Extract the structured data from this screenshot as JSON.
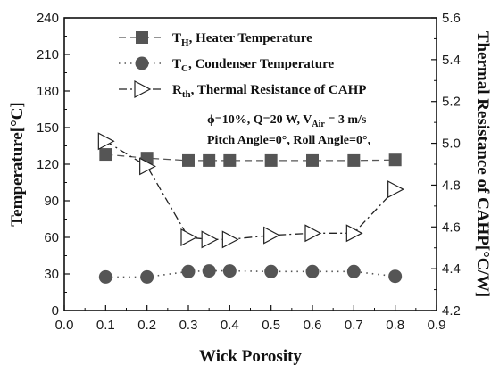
{
  "chart_data": {
    "type": "line",
    "xlabel": "Wick Porosity",
    "ylabel_left": "Temperature[°C]",
    "ylabel_right": "Thermal Resistance of CAHP[°C/W]",
    "xlim": [
      0.0,
      0.9
    ],
    "ylim_left": [
      0,
      240
    ],
    "ylim_right": [
      4.2,
      5.6
    ],
    "x_ticks": [
      "0.0",
      "0.1",
      "0.2",
      "0.3",
      "0.4",
      "0.5",
      "0.6",
      "0.7",
      "0.8",
      "0.9"
    ],
    "y_left_ticks": [
      "0",
      "30",
      "60",
      "90",
      "120",
      "150",
      "180",
      "210",
      "240"
    ],
    "y_right_ticks": [
      "4.2",
      "4.4",
      "4.6",
      "4.8",
      "5.0",
      "5.2",
      "5.4",
      "5.6"
    ],
    "x": [
      0.1,
      0.2,
      0.3,
      0.35,
      0.4,
      0.5,
      0.6,
      0.7,
      0.8
    ],
    "series": [
      {
        "name": "T_H, Heater Temperature",
        "axis": "left",
        "marker": "square",
        "line": "dashed",
        "color": "#555555",
        "values": [
          128,
          125,
          123,
          123,
          123,
          123,
          123,
          123,
          123.5
        ]
      },
      {
        "name": "T_C, Condenser Temperature",
        "axis": "left",
        "marker": "circle",
        "line": "dotted",
        "color": "#555555",
        "values": [
          27.5,
          27.5,
          32,
          32.5,
          32.5,
          32,
          32,
          32,
          28
        ]
      },
      {
        "name": "R_th, Thermal Resistance of CAHP",
        "axis": "right",
        "marker": "triangle-right",
        "line": "dash-dot",
        "color": "#222222",
        "values": [
          5.01,
          4.89,
          4.55,
          4.54,
          4.54,
          4.56,
          4.57,
          4.57,
          4.78
        ]
      }
    ],
    "legend": {
      "position": "top-center",
      "entries": [
        {
          "main": "T",
          "sub": "H",
          "rest": ", Heater Temperature"
        },
        {
          "main": "T",
          "sub": "C",
          "rest": ", Condenser Temperature"
        },
        {
          "main": "R",
          "sub": "th",
          "rest": ", Thermal Resistance of CAHP"
        }
      ]
    },
    "annotation": {
      "line1_pre": "ϕ=10%,  Q=20 W,  V",
      "line1_sub": "Air",
      "line1_post": " = 3 m/s",
      "line2": "Pitch Angle=0°, Roll Angle=0°,"
    }
  }
}
